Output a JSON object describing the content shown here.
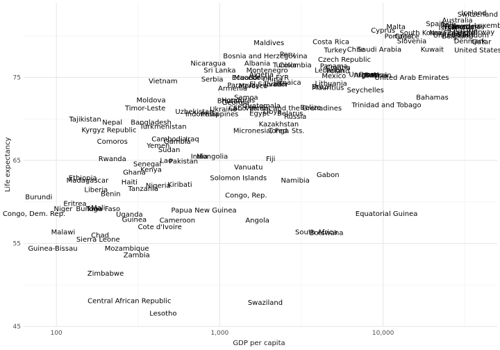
{
  "chart_data": {
    "type": "scatter",
    "title": "",
    "xlabel": "GDP per capita",
    "ylabel": "Life expectancy",
    "x_scale": "log10",
    "xlim": [
      63,
      50000
    ],
    "ylim": [
      45,
      84
    ],
    "x_ticks": [
      100,
      1000,
      10000
    ],
    "x_tick_labels": [
      "100",
      "1,000",
      "10,000"
    ],
    "y_ticks": [
      45,
      55,
      65,
      75
    ],
    "y_tick_labels": [
      "45",
      "55",
      "65",
      "75"
    ],
    "grid": true,
    "legend": "none",
    "points": [
      {
        "label": "Iceland",
        "x": 36000,
        "y": 82.8
      },
      {
        "label": "Switzerland",
        "x": 38000,
        "y": 82.6
      },
      {
        "label": "Australia",
        "x": 28500,
        "y": 81.9
      },
      {
        "label": "Spain",
        "x": 21000,
        "y": 81.5
      },
      {
        "label": "Italy",
        "x": 25000,
        "y": 81.4
      },
      {
        "label": "Luxembourg",
        "x": 49000,
        "y": 81.3
      },
      {
        "label": "France",
        "x": 28000,
        "y": 81.2
      },
      {
        "label": "Sweden",
        "x": 32000,
        "y": 81.2
      },
      {
        "label": "Canada",
        "x": 30000,
        "y": 81.1
      },
      {
        "label": "Netherlands",
        "x": 31000,
        "y": 81.1
      },
      {
        "label": "Israel",
        "x": 25000,
        "y": 81.0
      },
      {
        "label": "Malta",
        "x": 12000,
        "y": 81.1
      },
      {
        "label": "Cyprus",
        "x": 10000,
        "y": 80.7
      },
      {
        "label": "Austria",
        "x": 32000,
        "y": 80.7
      },
      {
        "label": "Norway",
        "x": 40000,
        "y": 80.5
      },
      {
        "label": "South Korea",
        "x": 17000,
        "y": 80.4
      },
      {
        "label": "Finland",
        "x": 28000,
        "y": 80.4
      },
      {
        "label": "Ireland",
        "x": 31000,
        "y": 80.2
      },
      {
        "label": "New Zealand",
        "x": 26500,
        "y": 80.4
      },
      {
        "label": "Portugal",
        "x": 12500,
        "y": 80.0
      },
      {
        "label": "Belgium",
        "x": 28000,
        "y": 80.0
      },
      {
        "label": "Greece",
        "x": 14000,
        "y": 80.0
      },
      {
        "label": "United Kingdom",
        "x": 30000,
        "y": 80.1
      },
      {
        "label": "Slovenia",
        "x": 15000,
        "y": 79.4
      },
      {
        "label": "Denmark",
        "x": 34000,
        "y": 79.4
      },
      {
        "label": "Qatar",
        "x": 40000,
        "y": 79.3
      },
      {
        "label": "Kuwait",
        "x": 20000,
        "y": 78.4
      },
      {
        "label": "United States",
        "x": 38000,
        "y": 78.3
      },
      {
        "label": "Maldives",
        "x": 2000,
        "y": 79.2
      },
      {
        "label": "Costa Rica",
        "x": 4800,
        "y": 79.3
      },
      {
        "label": "Chile",
        "x": 6800,
        "y": 78.4
      },
      {
        "label": "Saudi Arabia",
        "x": 9500,
        "y": 78.4
      },
      {
        "label": "Turkey",
        "x": 5100,
        "y": 78.3
      },
      {
        "label": "Bosnia and Herzegovina",
        "x": 1900,
        "y": 77.6
      },
      {
        "label": "Peru",
        "x": 2600,
        "y": 77.8
      },
      {
        "label": "Nicaragua",
        "x": 850,
        "y": 76.7
      },
      {
        "label": "Albania",
        "x": 1700,
        "y": 76.7
      },
      {
        "label": "Tunisia",
        "x": 2500,
        "y": 76.5
      },
      {
        "label": "Colombia",
        "x": 2900,
        "y": 76.5
      },
      {
        "label": "Czech Republic",
        "x": 5800,
        "y": 77.2
      },
      {
        "label": "Panama",
        "x": 5000,
        "y": 76.4
      },
      {
        "label": "Croatia",
        "x": 5300,
        "y": 76.2
      },
      {
        "label": "Sri Lanka",
        "x": 1000,
        "y": 75.9
      },
      {
        "label": "Montenegro",
        "x": 1950,
        "y": 75.9
      },
      {
        "label": "Lebanon",
        "x": 4700,
        "y": 75.9
      },
      {
        "label": "Macedonia, FYR",
        "x": 1800,
        "y": 75.0
      },
      {
        "label": "Algeria",
        "x": 1800,
        "y": 75.4
      },
      {
        "label": "Poland",
        "x": 5300,
        "y": 75.8
      },
      {
        "label": "Uruguay",
        "x": 7600,
        "y": 75.4
      },
      {
        "label": "Oman",
        "x": 8200,
        "y": 75.4
      },
      {
        "label": "Bahrain",
        "x": 9300,
        "y": 75.3
      },
      {
        "label": "Argentina",
        "x": 8400,
        "y": 75.3
      },
      {
        "label": "United Arab Emirates",
        "x": 15000,
        "y": 75.0
      },
      {
        "label": "Ecuador",
        "x": 1450,
        "y": 75.0
      },
      {
        "label": "Serbia",
        "x": 900,
        "y": 74.8
      },
      {
        "label": "Vietnam",
        "x": 450,
        "y": 74.6
      },
      {
        "label": "Mexico",
        "x": 5000,
        "y": 75.2
      },
      {
        "label": "China",
        "x": 2100,
        "y": 74.8
      },
      {
        "label": "Brazil",
        "x": 4200,
        "y": 73.9
      },
      {
        "label": "Paraguay",
        "x": 1400,
        "y": 74.1
      },
      {
        "label": "Jamaica",
        "x": 2600,
        "y": 74.4
      },
      {
        "label": "Lithuania",
        "x": 4800,
        "y": 74.3
      },
      {
        "label": "Morocco",
        "x": 1600,
        "y": 74.0
      },
      {
        "label": "El Salvador",
        "x": 2000,
        "y": 74.2
      },
      {
        "label": "Jordan",
        "x": 2200,
        "y": 74.2
      },
      {
        "label": "Armenia",
        "x": 1200,
        "y": 73.7
      },
      {
        "label": "Mauritius",
        "x": 4600,
        "y": 73.8
      },
      {
        "label": "Seychelles",
        "x": 7800,
        "y": 73.5
      },
      {
        "label": "Samoa",
        "x": 1450,
        "y": 72.6
      },
      {
        "label": "Moldova",
        "x": 380,
        "y": 72.3
      },
      {
        "label": "Bhutan",
        "x": 1150,
        "y": 72.2
      },
      {
        "label": "Honduras",
        "x": 1300,
        "y": 72.3
      },
      {
        "label": "Georgia",
        "x": 1250,
        "y": 72.0
      },
      {
        "label": "Bahamas",
        "x": 20000,
        "y": 72.6
      },
      {
        "label": "Trinidad and Tobago",
        "x": 10500,
        "y": 71.7
      },
      {
        "label": "Timor-Leste",
        "x": 350,
        "y": 71.3
      },
      {
        "label": "Ukraine",
        "x": 1050,
        "y": 71.2
      },
      {
        "label": "Guatemala",
        "x": 1800,
        "y": 71.6
      },
      {
        "label": "Cabo Verde",
        "x": 1500,
        "y": 71.3
      },
      {
        "label": "Uzbekistan",
        "x": 700,
        "y": 70.9
      },
      {
        "label": "St. Vincent and the Grenadines",
        "x": 2600,
        "y": 71.3
      },
      {
        "label": "Belize",
        "x": 3600,
        "y": 71.4
      },
      {
        "label": "Libya",
        "x": 2100,
        "y": 70.9
      },
      {
        "label": "Egypt",
        "x": 1750,
        "y": 70.7
      },
      {
        "label": "Indonesia",
        "x": 780,
        "y": 70.6
      },
      {
        "label": "Philippines",
        "x": 1000,
        "y": 70.6
      },
      {
        "label": "Belarus",
        "x": 2700,
        "y": 70.7
      },
      {
        "label": "Russia",
        "x": 2900,
        "y": 70.3
      },
      {
        "label": "Tajikistan",
        "x": 150,
        "y": 70.0
      },
      {
        "label": "Nepal",
        "x": 220,
        "y": 69.6
      },
      {
        "label": "Bangladesh",
        "x": 380,
        "y": 69.6
      },
      {
        "label": "Kazakhstan",
        "x": 2300,
        "y": 69.4
      },
      {
        "label": "Kyrgyz Republic",
        "x": 210,
        "y": 68.7
      },
      {
        "label": "Turkmenistan",
        "x": 450,
        "y": 69.1
      },
      {
        "label": "Micronesia, Fed. Sts.",
        "x": 2000,
        "y": 68.6
      },
      {
        "label": "Tonga",
        "x": 2300,
        "y": 68.6
      },
      {
        "label": "Cambodia",
        "x": 490,
        "y": 67.6
      },
      {
        "label": "Iraq",
        "x": 680,
        "y": 67.6
      },
      {
        "label": "Comoros",
        "x": 220,
        "y": 67.3
      },
      {
        "label": "Gambia",
        "x": 550,
        "y": 67.3
      },
      {
        "label": "Yemen",
        "x": 420,
        "y": 66.8
      },
      {
        "label": "Sudan",
        "x": 490,
        "y": 66.3
      },
      {
        "label": "Rwanda",
        "x": 220,
        "y": 65.2
      },
      {
        "label": "India",
        "x": 750,
        "y": 65.5
      },
      {
        "label": "Mongolia",
        "x": 900,
        "y": 65.5
      },
      {
        "label": "Lao",
        "x": 470,
        "y": 65.0
      },
      {
        "label": "Pakistan",
        "x": 600,
        "y": 64.9
      },
      {
        "label": "Fiji",
        "x": 2050,
        "y": 65.2
      },
      {
        "label": "Senegal",
        "x": 360,
        "y": 64.6
      },
      {
        "label": "Vanuatu",
        "x": 1500,
        "y": 64.2
      },
      {
        "label": "Kenya",
        "x": 380,
        "y": 63.9
      },
      {
        "label": "Ghana",
        "x": 300,
        "y": 63.6
      },
      {
        "label": "Gabon",
        "x": 4600,
        "y": 63.3
      },
      {
        "label": "Ethiopia",
        "x": 145,
        "y": 62.9
      },
      {
        "label": "Madagascar",
        "x": 155,
        "y": 62.6
      },
      {
        "label": "Solomon Islands",
        "x": 1300,
        "y": 62.9
      },
      {
        "label": "Namibia",
        "x": 2900,
        "y": 62.6
      },
      {
        "label": "Haiti",
        "x": 280,
        "y": 62.4
      },
      {
        "label": "Kiribati",
        "x": 570,
        "y": 62.1
      },
      {
        "label": "Nigeria",
        "x": 420,
        "y": 62.0
      },
      {
        "label": "Tanzania",
        "x": 340,
        "y": 61.6
      },
      {
        "label": "Liberia",
        "x": 175,
        "y": 61.5
      },
      {
        "label": "Benin",
        "x": 215,
        "y": 61.0
      },
      {
        "label": "Congo, Rep.",
        "x": 1450,
        "y": 60.8
      },
      {
        "label": "Burundi",
        "x": 78,
        "y": 60.6
      },
      {
        "label": "Eritrea",
        "x": 130,
        "y": 59.8
      },
      {
        "label": "Niger",
        "x": 110,
        "y": 59.2
      },
      {
        "label": "Burkina Faso",
        "x": 180,
        "y": 59.2
      },
      {
        "label": "Mali",
        "x": 180,
        "y": 59.3
      },
      {
        "label": "Togo",
        "x": 170,
        "y": 59.2
      },
      {
        "label": "Papua New Guinea",
        "x": 800,
        "y": 59.0
      },
      {
        "label": "Congo, Dem. Rep.",
        "x": 73,
        "y": 58.6
      },
      {
        "label": "Uganda",
        "x": 280,
        "y": 58.5
      },
      {
        "label": "Equatorial Guinea",
        "x": 10500,
        "y": 58.6
      },
      {
        "label": "Guinea",
        "x": 300,
        "y": 57.9
      },
      {
        "label": "Cameroon",
        "x": 550,
        "y": 57.8
      },
      {
        "label": "Angola",
        "x": 1700,
        "y": 57.8
      },
      {
        "label": "Cote d'Ivoire",
        "x": 430,
        "y": 57.0
      },
      {
        "label": "Malawi",
        "x": 110,
        "y": 56.4
      },
      {
        "label": "South Africa",
        "x": 3900,
        "y": 56.4
      },
      {
        "label": "Botswana",
        "x": 4500,
        "y": 56.3
      },
      {
        "label": "Chad",
        "x": 185,
        "y": 56.0
      },
      {
        "label": "Sierra Leone",
        "x": 180,
        "y": 55.5
      },
      {
        "label": "Guinea-Bissau",
        "x": 95,
        "y": 54.4
      },
      {
        "label": "Mozambique",
        "x": 270,
        "y": 54.4
      },
      {
        "label": "Zambia",
        "x": 310,
        "y": 53.6
      },
      {
        "label": "Zimbabwe",
        "x": 200,
        "y": 51.4
      },
      {
        "label": "Central African Republic",
        "x": 280,
        "y": 48.1
      },
      {
        "label": "Swaziland",
        "x": 1900,
        "y": 47.9
      },
      {
        "label": "Lesotho",
        "x": 450,
        "y": 46.6
      }
    ]
  }
}
